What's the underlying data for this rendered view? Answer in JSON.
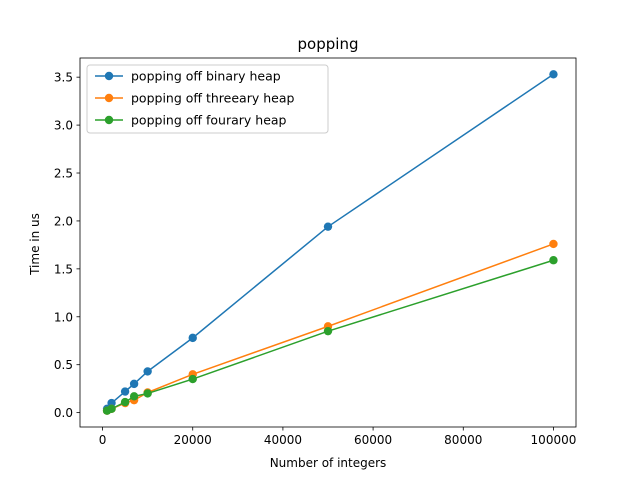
{
  "chart_data": {
    "type": "line",
    "title": "popping",
    "xlabel": "Number of integers",
    "ylabel": "Time in us",
    "xlim": [
      -5000,
      105000
    ],
    "ylim": [
      -0.15,
      3.7
    ],
    "xticks": [
      0,
      20000,
      40000,
      60000,
      80000,
      100000
    ],
    "yticks": [
      0.0,
      0.5,
      1.0,
      1.5,
      2.0,
      2.5,
      3.0,
      3.5
    ],
    "xtick_labels": [
      "0",
      "20000",
      "40000",
      "60000",
      "80000",
      "100000"
    ],
    "ytick_labels": [
      "0.0",
      "0.5",
      "1.0",
      "1.5",
      "2.0",
      "2.5",
      "3.0",
      "3.5"
    ],
    "grid": false,
    "legend_position": "upper-left",
    "x": [
      1000,
      2000,
      5000,
      7000,
      10000,
      20000,
      50000,
      100000
    ],
    "series": [
      {
        "name": "popping off binary heap",
        "color": "#1f77b4",
        "values": [
          0.04,
          0.1,
          0.22,
          0.3,
          0.43,
          0.78,
          1.94,
          3.53
        ]
      },
      {
        "name": "popping off threeary heap",
        "color": "#ff7f0e",
        "values": [
          0.02,
          0.04,
          0.1,
          0.13,
          0.21,
          0.4,
          0.9,
          1.76
        ]
      },
      {
        "name": "popping off fourary heap",
        "color": "#2ca02c",
        "values": [
          0.02,
          0.04,
          0.11,
          0.17,
          0.2,
          0.35,
          0.85,
          1.59
        ]
      }
    ]
  }
}
